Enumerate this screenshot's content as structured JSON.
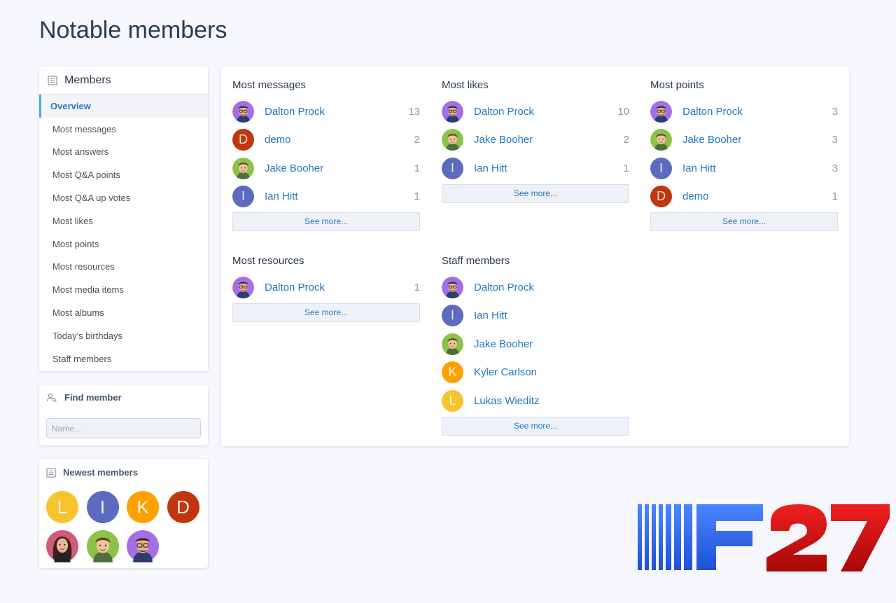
{
  "page": {
    "title": "Notable members"
  },
  "sidebar": {
    "header": "Members",
    "items": [
      {
        "label": "Overview",
        "active": true
      },
      {
        "label": "Most messages"
      },
      {
        "label": "Most answers"
      },
      {
        "label": "Most Q&A points"
      },
      {
        "label": "Most Q&A up votes"
      },
      {
        "label": "Most likes"
      },
      {
        "label": "Most points"
      },
      {
        "label": "Most resources"
      },
      {
        "label": "Most media items"
      },
      {
        "label": "Most albums"
      },
      {
        "label": "Today's birthdays"
      },
      {
        "label": "Staff members"
      }
    ]
  },
  "find_member": {
    "header": "Find member",
    "placeholder": "Name..."
  },
  "newest_members": {
    "header": "Newest members",
    "avatars": [
      {
        "letter": "L",
        "color": "#f7c32e"
      },
      {
        "letter": "I",
        "color": "#5c6bc0"
      },
      {
        "letter": "K",
        "color": "#ffa000"
      },
      {
        "letter": "D",
        "color": "#c1360f"
      },
      {
        "photo": "woman",
        "color": "#d05a7a"
      },
      {
        "photo": "jake",
        "color": "#8bc34a"
      },
      {
        "photo": "dalton",
        "color": "#a66ee6"
      }
    ]
  },
  "lists": {
    "most_messages": {
      "title": "Most messages",
      "rows": [
        {
          "name": "Dalton Prock",
          "count": "13",
          "avatar": "dalton"
        },
        {
          "name": "demo",
          "count": "2",
          "avatar": "D",
          "color": "#c1360f"
        },
        {
          "name": "Jake Booher",
          "count": "1",
          "avatar": "jake"
        },
        {
          "name": "Ian Hitt",
          "count": "1",
          "avatar": "I",
          "color": "#5c6bc0"
        }
      ],
      "see_more": "See more..."
    },
    "most_likes": {
      "title": "Most likes",
      "rows": [
        {
          "name": "Dalton Prock",
          "count": "10",
          "avatar": "dalton"
        },
        {
          "name": "Jake Booher",
          "count": "2",
          "avatar": "jake"
        },
        {
          "name": "Ian Hitt",
          "count": "1",
          "avatar": "I",
          "color": "#5c6bc0"
        }
      ],
      "see_more": "See more..."
    },
    "most_points": {
      "title": "Most points",
      "rows": [
        {
          "name": "Dalton Prock",
          "count": "3",
          "avatar": "dalton"
        },
        {
          "name": "Jake Booher",
          "count": "3",
          "avatar": "jake"
        },
        {
          "name": "Ian Hitt",
          "count": "3",
          "avatar": "I",
          "color": "#5c6bc0"
        },
        {
          "name": "demo",
          "count": "1",
          "avatar": "D",
          "color": "#c1360f"
        }
      ],
      "see_more": "See more..."
    },
    "most_resources": {
      "title": "Most resources",
      "rows": [
        {
          "name": "Dalton Prock",
          "count": "1",
          "avatar": "dalton"
        }
      ],
      "see_more": "See more..."
    },
    "staff_members": {
      "title": "Staff members",
      "rows": [
        {
          "name": "Dalton Prock",
          "avatar": "dalton"
        },
        {
          "name": "Ian Hitt",
          "avatar": "I",
          "color": "#5c6bc0"
        },
        {
          "name": "Jake Booher",
          "avatar": "jake"
        },
        {
          "name": "Kyler Carlson",
          "avatar": "K",
          "color": "#ffa000"
        },
        {
          "name": "Lukas Wieditz",
          "avatar": "L",
          "color": "#f7c32e"
        }
      ],
      "see_more": "See more..."
    }
  },
  "watermark": {
    "text": "F27"
  }
}
